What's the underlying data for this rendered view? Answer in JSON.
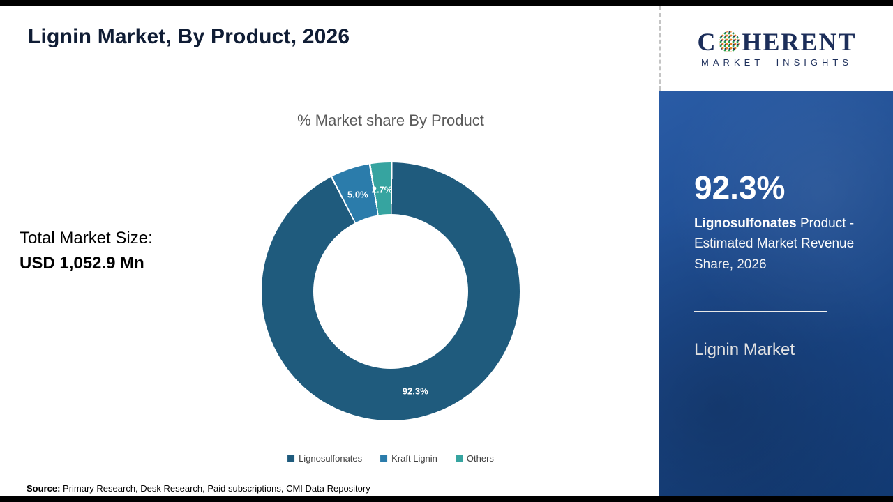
{
  "page": {
    "title": "Lignin Market, By Product, 2026",
    "source": {
      "label": "Source:",
      "text": " Primary Research, Desk Research, Paid subscriptions, CMI Data Repository"
    }
  },
  "stats": {
    "total_label": "Total Market Size:",
    "total_value": "USD 1,052.9 Mn"
  },
  "chart_data": {
    "type": "pie",
    "donut": true,
    "title": "% Market share By Product",
    "categories": [
      "Lignosulfonates",
      "Kraft Lignin",
      "Others"
    ],
    "values": [
      92.3,
      5.0,
      2.7
    ],
    "labels": [
      "92.3%",
      "5.0%",
      "2.7%"
    ],
    "colors": [
      "#1f5b7d",
      "#2b7cab",
      "#36a4a0"
    ],
    "legend_position": "bottom"
  },
  "sidebar": {
    "logo": {
      "text_before_globe": "C",
      "text_after_globe": "HERENT",
      "subtitle": "MARKET INSIGHTS"
    },
    "highlight": {
      "value": "92.3%",
      "bold": "Lignosulfonates",
      "rest": " Product - Estimated Market Revenue Share, 2026"
    },
    "panel_title": "Lignin Market"
  }
}
